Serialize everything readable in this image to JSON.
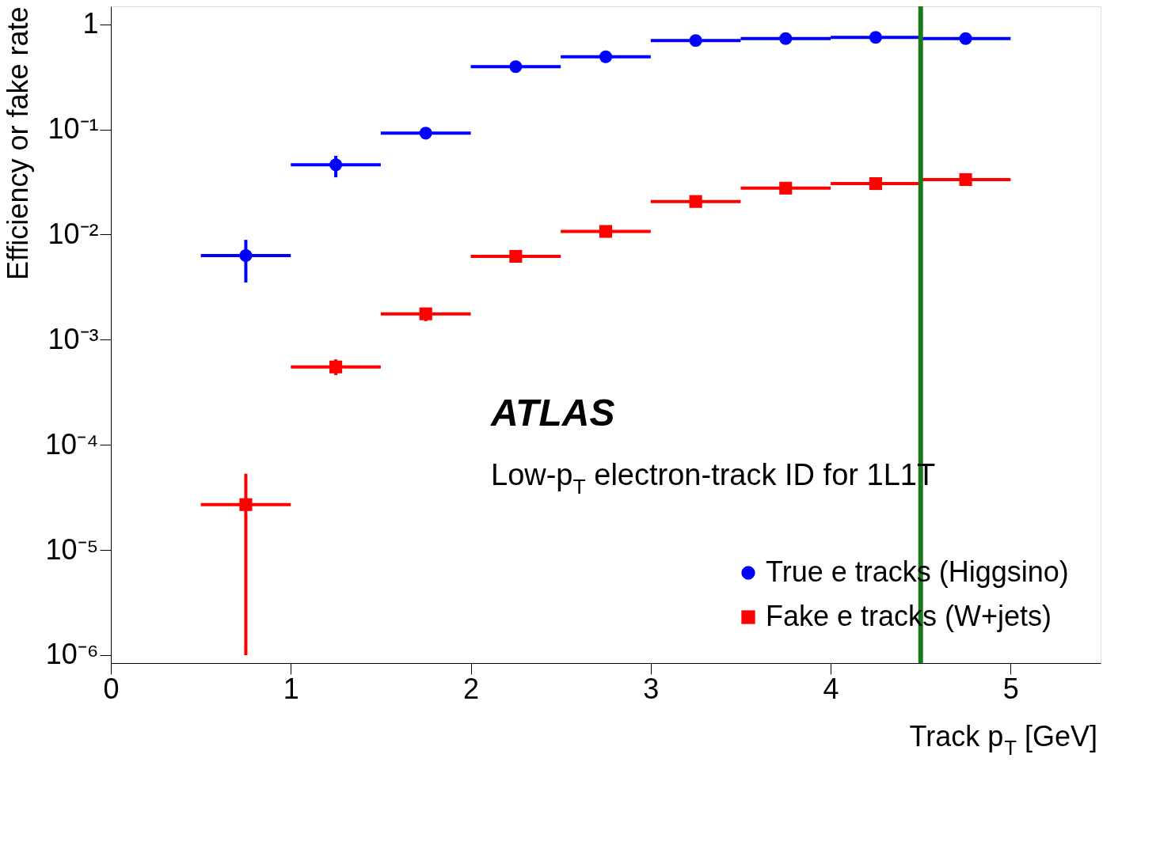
{
  "chart_data": {
    "type": "scatter",
    "xlabel": "Track p$_{T}$ [GeV]",
    "ylabel": "Efficiency or fake rate",
    "x": [
      0.75,
      1.25,
      1.75,
      2.25,
      2.75,
      3.25,
      3.75,
      4.25,
      4.75
    ],
    "series": [
      {
        "name": "True e tracks (Higgsino)",
        "color": "#0000ff",
        "marker": "circle",
        "values": [
          0.0063,
          0.046,
          0.092,
          0.395,
          0.49,
          0.7,
          0.73,
          0.75,
          0.73
        ],
        "errors": [
          [
            0.0035,
            0.0089
          ],
          [
            0.035,
            0.056
          ],
          null,
          null,
          null,
          null,
          null,
          null,
          null
        ],
        "xerrors": [
          0.25,
          0.25,
          0.25,
          0.25,
          0.25,
          0.25,
          0.25,
          0.25,
          0.25
        ]
      },
      {
        "name": "Fake e tracks (W+jets)",
        "color": "#ff0000",
        "marker": "square",
        "values": [
          2.7e-05,
          0.00055,
          0.00176,
          0.0062,
          0.0107,
          0.0206,
          0.0276,
          0.0305,
          0.0333
        ],
        "errors": [
          [
            1e-06,
            5.3e-05
          ],
          [
            0.00046,
            0.00065
          ],
          [
            0.0015,
            0.002
          ],
          null,
          null,
          null,
          null,
          null,
          null
        ],
        "xerrors": [
          0.25,
          0.25,
          0.25,
          0.25,
          0.25,
          0.25,
          0.25,
          0.25,
          0.25
        ]
      }
    ],
    "log": "y",
    "xlim": [
      0,
      5.5
    ],
    "xticks": [
      0,
      1,
      2,
      3,
      4,
      5
    ],
    "ylim": [
      8.4e-07,
      1.48
    ],
    "yticks": [
      {
        "value": 1e-06,
        "label": "10⁻⁶"
      },
      {
        "value": 1e-05,
        "label": "10⁻⁵"
      },
      {
        "value": 0.0001,
        "label": "10⁻⁴"
      },
      {
        "value": 0.001,
        "label": "10⁻³"
      },
      {
        "value": 0.01,
        "label": "10⁻²"
      },
      {
        "value": 0.1,
        "label": "10⁻¹"
      },
      1
    ],
    "grid": false,
    "legend": "bottom right",
    "annotations": [
      "ATLAS",
      "Low-p$_{T}$ electron-track ID for 1L1T"
    ],
    "ref_lines": [
      {
        "axis": "x",
        "value": 4.5,
        "color": "#1a7a1a"
      }
    ]
  }
}
